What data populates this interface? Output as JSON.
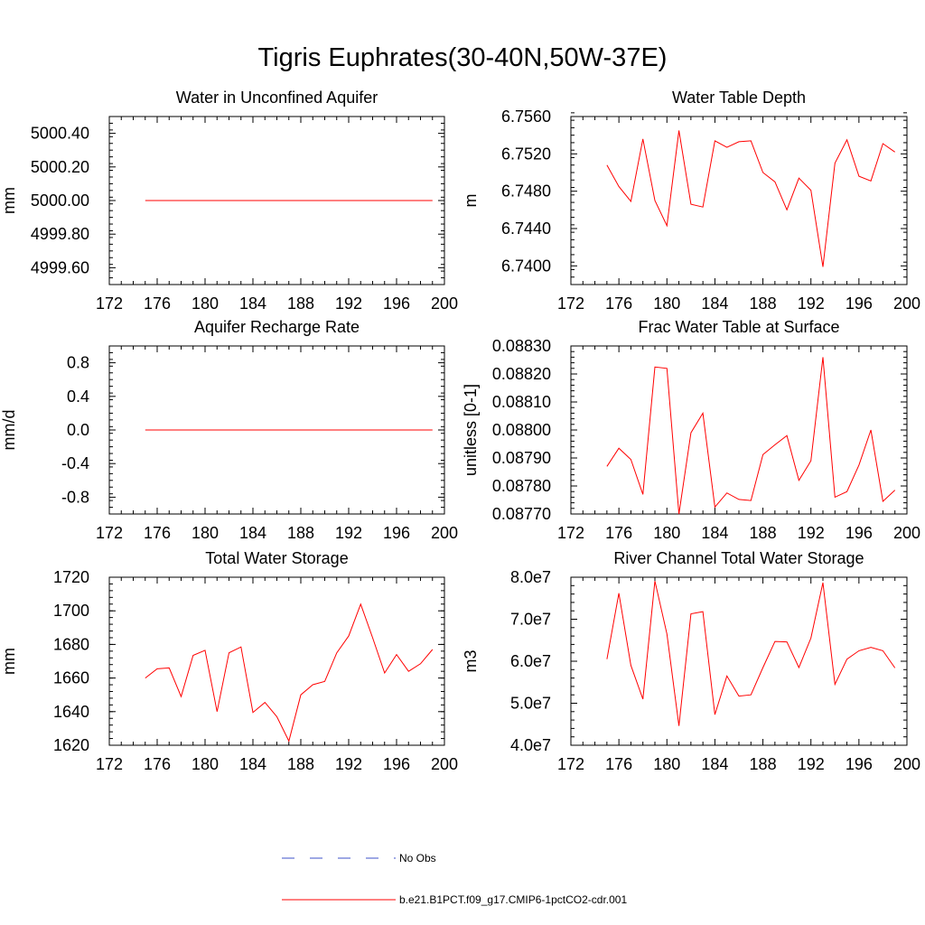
{
  "title": "Tigris Euphrates(30-40N,50W-37E)",
  "colors": {
    "model": "#ff0000",
    "obs": "#3c50c8",
    "axis": "#000000"
  },
  "legend": {
    "items": [
      {
        "label": "No Obs",
        "style": "dashed",
        "color": "#3c50c8"
      },
      {
        "label": "b.e21.B1PCT.f09_g17.CMIP6-1pctCO2-cdr.001",
        "style": "solid",
        "color": "#ff0000"
      }
    ]
  },
  "chart_data": [
    {
      "type": "line",
      "title": "Water in Unconfined Aquifer",
      "ylabel": "mm",
      "xlim": [
        172,
        200
      ],
      "xticks": [
        "172",
        "176",
        "180",
        "184",
        "188",
        "192",
        "196",
        "200"
      ],
      "ylim": [
        4999.5,
        5000.5
      ],
      "yticks": [
        "4999.60",
        "4999.80",
        "5000.00",
        "5000.20",
        "5000.40"
      ],
      "x": [
        175,
        176,
        177,
        178,
        179,
        180,
        181,
        182,
        183,
        184,
        185,
        186,
        187,
        188,
        189,
        190,
        191,
        192,
        193,
        194,
        195,
        196,
        197,
        198,
        199
      ],
      "series": [
        {
          "values": [
            5000,
            5000,
            5000,
            5000,
            5000,
            5000,
            5000,
            5000,
            5000,
            5000,
            5000,
            5000,
            5000,
            5000,
            5000,
            5000,
            5000,
            5000,
            5000,
            5000,
            5000,
            5000,
            5000,
            5000,
            5000
          ]
        }
      ]
    },
    {
      "type": "line",
      "title": "Water Table Depth",
      "ylabel": "m",
      "xlim": [
        172,
        200
      ],
      "xticks": [
        "172",
        "176",
        "180",
        "184",
        "188",
        "192",
        "196",
        "200"
      ],
      "ylim": [
        6.738,
        6.756
      ],
      "yticks": [
        "6.7400",
        "6.7440",
        "6.7480",
        "6.7520",
        "6.7560"
      ],
      "x": [
        175,
        176,
        177,
        178,
        179,
        180,
        181,
        182,
        183,
        184,
        185,
        186,
        187,
        188,
        189,
        190,
        191,
        192,
        193,
        194,
        195,
        196,
        197,
        198,
        199
      ],
      "series": [
        {
          "values": [
            6.7508,
            6.7485,
            6.7469,
            6.7536,
            6.747,
            6.7443,
            6.7545,
            6.7466,
            6.7463,
            6.7534,
            6.7527,
            6.7533,
            6.7534,
            6.75,
            6.749,
            6.746,
            6.7494,
            6.7481,
            6.7399,
            6.751,
            6.7535,
            6.7496,
            6.7491,
            6.7531,
            6.7522
          ]
        }
      ]
    },
    {
      "type": "line",
      "title": "Aquifer Recharge Rate",
      "ylabel": "mm/d",
      "xlim": [
        172,
        200
      ],
      "xticks": [
        "172",
        "176",
        "180",
        "184",
        "188",
        "192",
        "196",
        "200"
      ],
      "ylim": [
        -1.0,
        1.0
      ],
      "yticks": [
        "-0.8",
        "-0.4",
        "0.0",
        "0.4",
        "0.8"
      ],
      "x": [
        175,
        176,
        177,
        178,
        179,
        180,
        181,
        182,
        183,
        184,
        185,
        186,
        187,
        188,
        189,
        190,
        191,
        192,
        193,
        194,
        195,
        196,
        197,
        198,
        199
      ],
      "series": [
        {
          "values": [
            0,
            0,
            0,
            0,
            0,
            0,
            0,
            0,
            0,
            0,
            0,
            0,
            0,
            0,
            0,
            0,
            0,
            0,
            0,
            0,
            0,
            0,
            0,
            0,
            0
          ]
        }
      ]
    },
    {
      "type": "line",
      "title": "Frac Water Table at Surface",
      "ylabel": "unitless [0-1]",
      "xlim": [
        172,
        200
      ],
      "xticks": [
        "172",
        "176",
        "180",
        "184",
        "188",
        "192",
        "196",
        "200"
      ],
      "ylim": [
        0.0877,
        0.0883
      ],
      "yticks": [
        "0.08770",
        "0.08780",
        "0.08790",
        "0.08800",
        "0.08810",
        "0.08820",
        "0.08830"
      ],
      "x": [
        175,
        176,
        177,
        178,
        179,
        180,
        181,
        182,
        183,
        184,
        185,
        186,
        187,
        188,
        189,
        190,
        191,
        192,
        193,
        194,
        195,
        196,
        197,
        198,
        199
      ],
      "series": [
        {
          "values": [
            0.08787,
            0.087935,
            0.087895,
            0.08777,
            0.088225,
            0.08822,
            0.0877,
            0.08799,
            0.08806,
            0.087725,
            0.087775,
            0.087752,
            0.087748,
            0.087912,
            0.087947,
            0.08798,
            0.08782,
            0.08789,
            0.08826,
            0.08776,
            0.08778,
            0.087875,
            0.088,
            0.087745,
            0.087785
          ]
        }
      ]
    },
    {
      "type": "line",
      "title": "Total Water Storage",
      "ylabel": "mm",
      "xlim": [
        172,
        200
      ],
      "xticks": [
        "172",
        "176",
        "180",
        "184",
        "188",
        "192",
        "196",
        "200"
      ],
      "ylim": [
        1620,
        1720
      ],
      "yticks": [
        "1620",
        "1640",
        "1660",
        "1680",
        "1700",
        "1720"
      ],
      "x": [
        175,
        176,
        177,
        178,
        179,
        180,
        181,
        182,
        183,
        184,
        185,
        186,
        187,
        188,
        189,
        190,
        191,
        192,
        193,
        194,
        195,
        196,
        197,
        198,
        199
      ],
      "series": [
        {
          "values": [
            1660,
            1665.5,
            1666,
            1649,
            1673.5,
            1676.5,
            1640,
            1675,
            1678.5,
            1639.5,
            1645.5,
            1637,
            1622.5,
            1650,
            1656,
            1658,
            1675,
            1685,
            1704,
            1684,
            1663,
            1674,
            1664,
            1668.5,
            1677
          ]
        }
      ]
    },
    {
      "type": "line",
      "title": "River Channel Total Water Storage",
      "ylabel": "m3",
      "xlim": [
        172,
        200
      ],
      "xticks": [
        "172",
        "176",
        "180",
        "184",
        "188",
        "192",
        "196",
        "200"
      ],
      "ylim": [
        40000000,
        80000000
      ],
      "yticks": [
        "4.0e7",
        "5.0e7",
        "6.0e7",
        "7.0e7",
        "8.0e7"
      ],
      "x": [
        175,
        176,
        177,
        178,
        179,
        180,
        181,
        182,
        183,
        184,
        185,
        186,
        187,
        188,
        189,
        190,
        191,
        192,
        193,
        194,
        195,
        196,
        197,
        198,
        199
      ],
      "series": [
        {
          "values": [
            60500000,
            76200000,
            59000000,
            51000000,
            79100000,
            66500000,
            44600000,
            71300000,
            71800000,
            47300000,
            56500000,
            51700000,
            52000000,
            58500000,
            64700000,
            64600000,
            58500000,
            65500000,
            78700000,
            54500000,
            60500000,
            62500000,
            63300000,
            62500000,
            58400000
          ]
        }
      ]
    }
  ]
}
